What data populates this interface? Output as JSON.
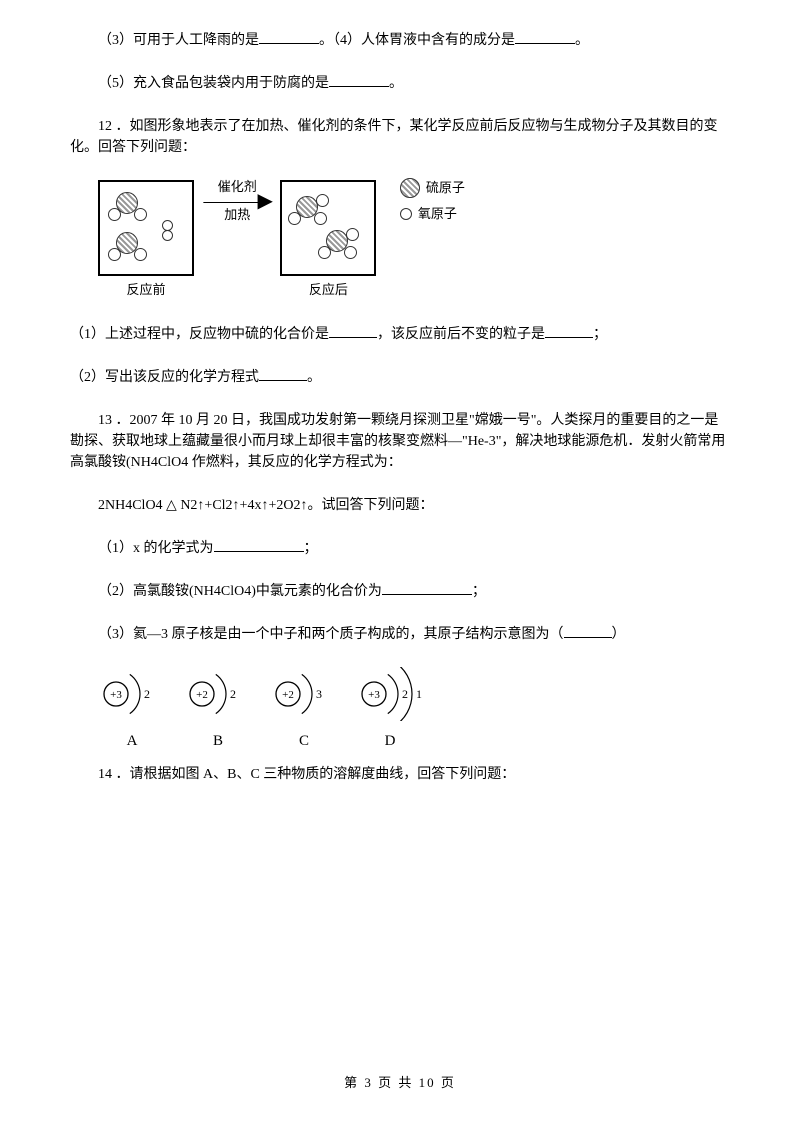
{
  "q11": {
    "line1_a": "（3）可用于人工降雨的是",
    "line1_b": "。（4）人体胃液中含有的成分是",
    "line1_c": "。",
    "line2_a": "（5）充入食品包装袋内用于防腐的是",
    "line2_b": "。"
  },
  "q12": {
    "stem": "12 ．如图形象地表示了在加热、催化剂的条件下，某化学反应前后反应物与生成物分子及其数目的变化。回答下列问题：",
    "arrow_top": "催化剂",
    "arrow_bottom": "加热",
    "box_before": "反应前",
    "box_after": "反应后",
    "legend_s": "硫原子",
    "legend_o": "氧原子",
    "sub1_a": "（1）上述过程中，反应物中硫的化合价是",
    "sub1_b": "，该反应前后不变的粒子是",
    "sub1_c": "；",
    "sub2_a": "（2）写出该反应的化学方程式",
    "sub2_b": "。"
  },
  "q13": {
    "stem": "13 ．2007 年 10 月 20 日，我国成功发射第一颗绕月探测卫星\"嫦娥一号\"。人类探月的重要目的之一是勘探、获取地球上蕴藏量很小而月球上却很丰富的核聚变燃料—\"He-3\"，解决地球能源危机．发射火箭常用高氯酸铵(NH4ClO4 作燃料，其反应的化学方程式为：",
    "eq": "2NH4ClO4 △ N2↑+Cl2↑+4x↑+2O2↑。试回答下列问题：",
    "sub1_a": "（1）x 的化学式为",
    "sub1_b": "；",
    "sub2_a": "（2）高氯酸铵(NH4ClO4)中氯元素的化合价为",
    "sub2_b": "；",
    "sub3_a": "（3）氦—3 原子核是由一个中子和两个质子构成的，其原子结构示意图为（",
    "sub3_b": "）",
    "options": [
      {
        "label": "A",
        "nucleus": "+3",
        "shells": [
          "2"
        ]
      },
      {
        "label": "B",
        "nucleus": "+2",
        "shells": [
          "2"
        ]
      },
      {
        "label": "C",
        "nucleus": "+2",
        "shells": [
          "3"
        ]
      },
      {
        "label": "D",
        "nucleus": "+3",
        "shells": [
          "2",
          "1"
        ]
      }
    ]
  },
  "q14": {
    "stem": "14 ．请根据如图 A、B、C 三种物质的溶解度曲线，回答下列问题："
  },
  "footer": "第 3 页 共 10 页",
  "colors": {
    "text": "#000000",
    "bg": "#ffffff",
    "atom_stroke": "#333333"
  }
}
